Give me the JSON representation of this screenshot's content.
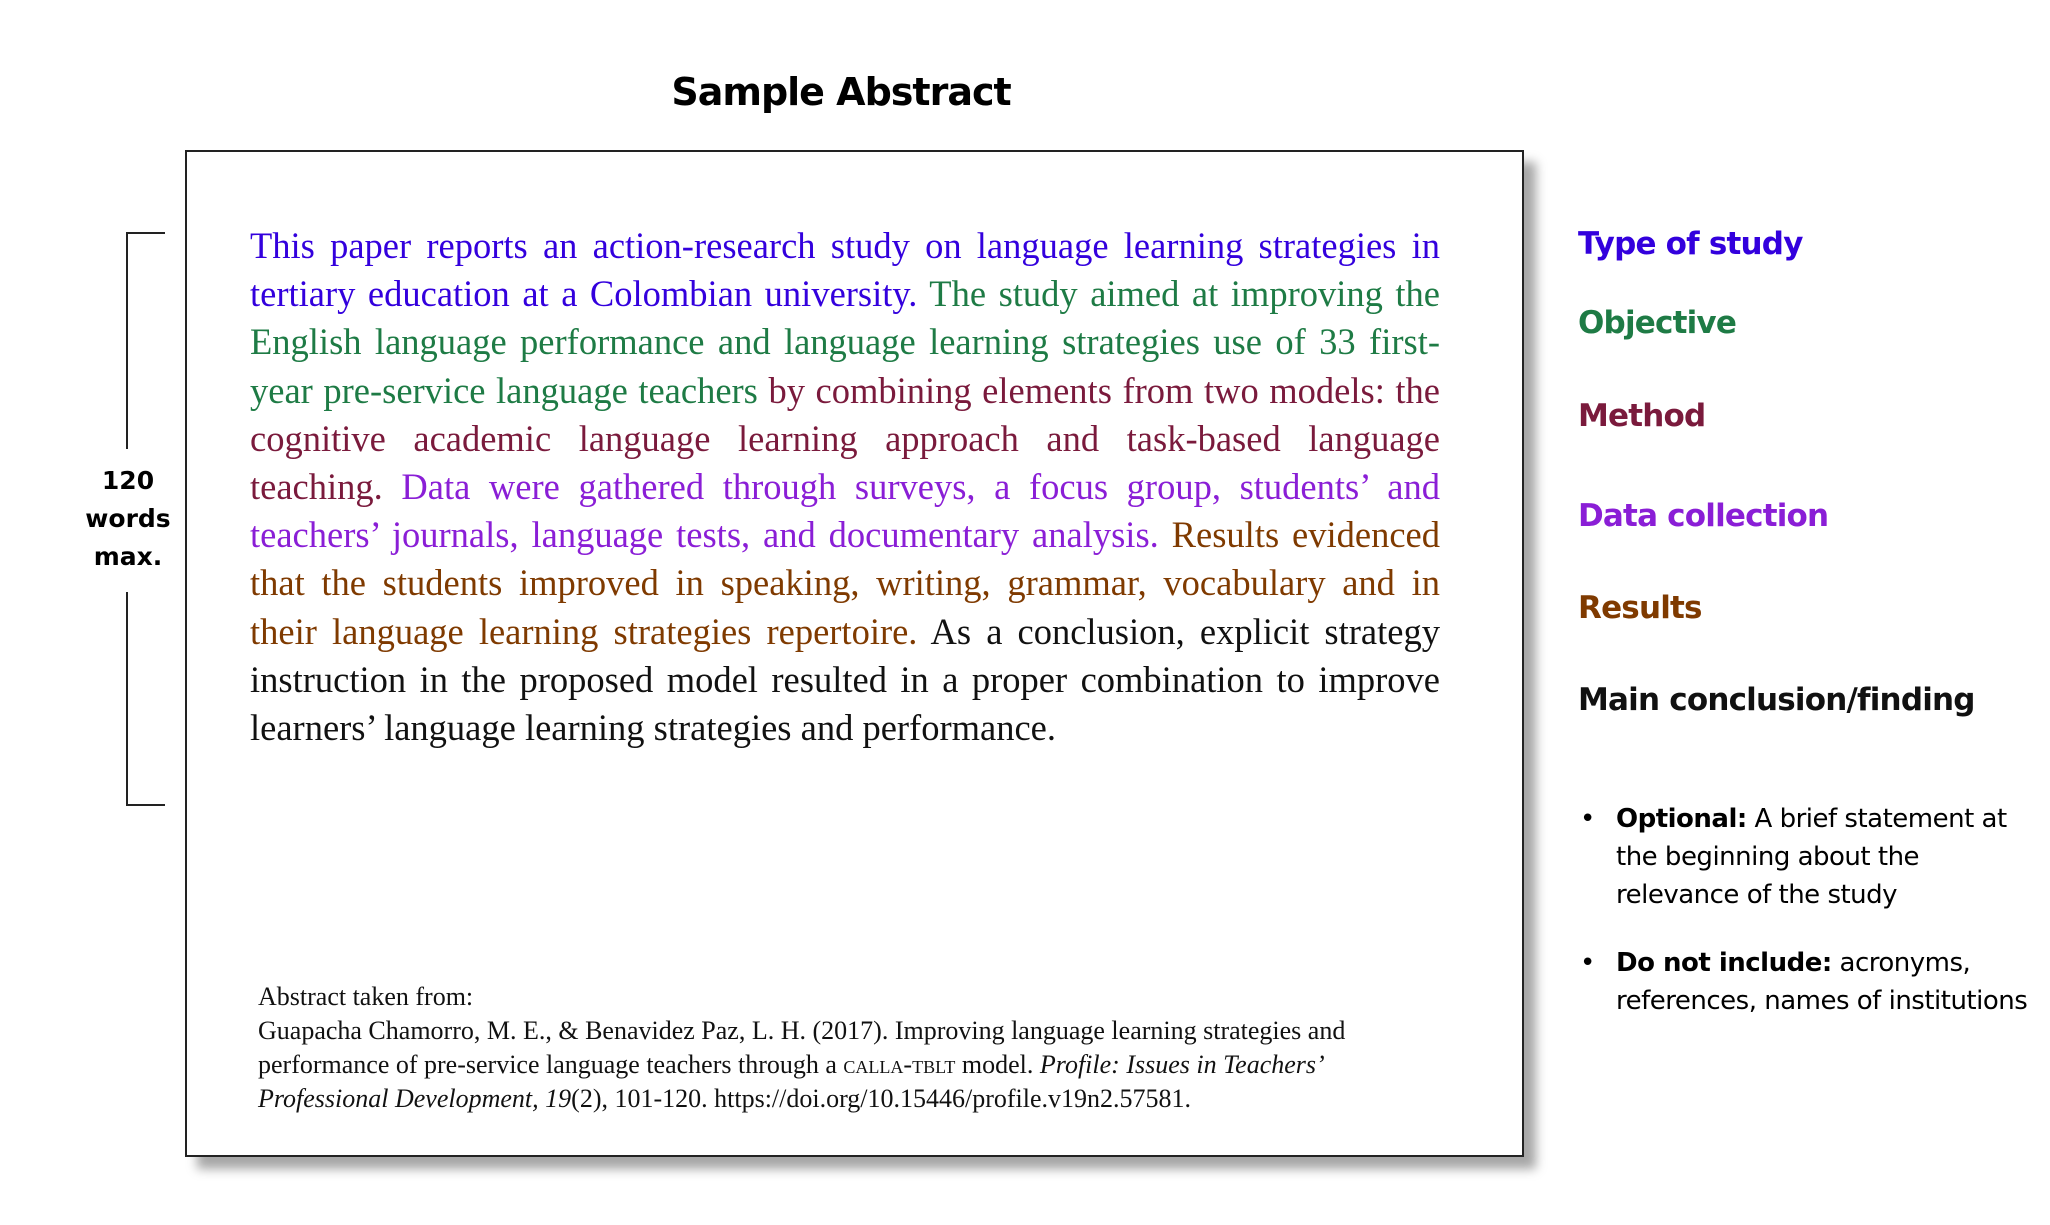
{
  "title": "Sample Abstract",
  "word_limit": {
    "line1": "120",
    "line2": "words",
    "line3": "max."
  },
  "abstract_segments": {
    "type_of_study": "This paper reports an action-research study on language learning strategies in tertiary education at a Colombian university.",
    "objective": "The study aimed at improving the English language performance and language learning strategies use of 33 first-year pre-service language teachers",
    "method": "by combining elements from two models: the cognitive academic language learning approach and task-based language teaching.",
    "data_collection": "Data were gathered through surveys, a focus group, students’ and teachers’ journals, language tests, and documentary analysis.",
    "results": "Results evidenced that the students improved in speaking, writing, grammar, vocabulary and in their language learning strategies repertoire.",
    "main_conclusion": "As a conclusion, explicit strategy instruction in the proposed model resulted in a proper combination to improve learners’ language learning strategies and performance."
  },
  "citation": {
    "intro": "Abstract taken from:",
    "part1": "Guapacha Chamorro, M. E., & Benavidez Paz, L. H. (2017). Improving language learning strategies and performance of pre-service language teachers through a ",
    "smallcaps": "calla-tblt",
    "part2": " model. ",
    "journal": "Profile: Issues in Teachers’ Professional Development, 19",
    "part3": "(2), 101-120. https://doi.org/10.15446/profile.v19n2.57581."
  },
  "legend": {
    "type_of_study": "Type of study",
    "objective": "Objective",
    "method": "Method",
    "data_collection": "Data collection",
    "results": "Results",
    "main_conclusion": "Main conclusion/finding"
  },
  "notes": [
    {
      "bold": "Optional:",
      "text": " A brief statement at the beginning about the relevance of the study"
    },
    {
      "bold": "Do not include:",
      "text": " acronyms, references, names of institutions"
    }
  ],
  "colors": {
    "type_of_study": "#3300dd",
    "objective": "#1e7b45",
    "method": "#7a1a3c",
    "data_collection": "#8a1ed6",
    "results": "#7f3a00",
    "main_conclusion": "#111111"
  }
}
